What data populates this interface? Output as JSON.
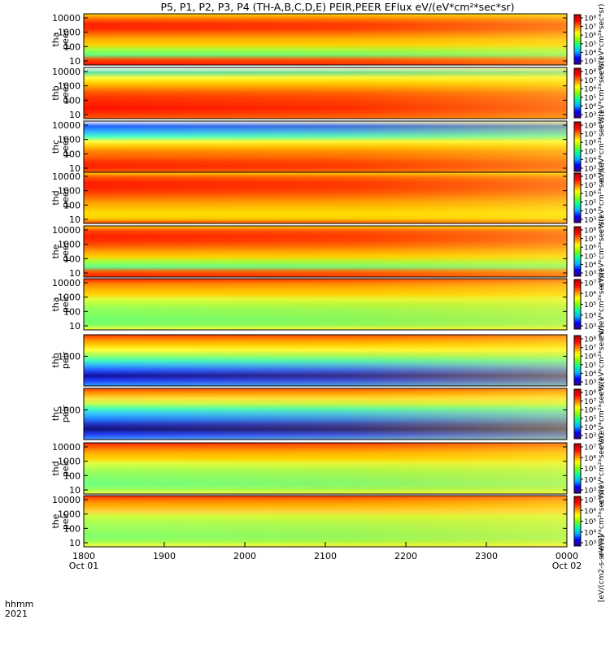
{
  "chart_data": {
    "type": "heatmap",
    "title": "P5, P1, P2, P3, P4 (TH-A,B,C,D,E) PEIR,PEER EFlux eV/(eV*cm²*sec*sr)",
    "xaxis": {
      "label_line1": "hhmm",
      "label_line2": "2021",
      "range": [
        "1800",
        "0000"
      ],
      "ticks": [
        {
          "label": "1800",
          "sub": "Oct 01"
        },
        {
          "label": "1900",
          "sub": ""
        },
        {
          "label": "2000",
          "sub": ""
        },
        {
          "label": "2100",
          "sub": ""
        },
        {
          "label": "2200",
          "sub": ""
        },
        {
          "label": "2300",
          "sub": ""
        },
        {
          "label": "0000",
          "sub": "Oct 02"
        }
      ]
    },
    "colorbar_label": "[eV/(cm2-s-sr-eV)]",
    "colorbar_scheme": [
      "#3a0086",
      "#0000ff",
      "#00b4ff",
      "#00ffa0",
      "#7fff00",
      "#ffff00",
      "#ff8000",
      "#ff0000",
      "#b00000"
    ],
    "panels": [
      {
        "probe": "tha",
        "species": "peer",
        "yticks": [
          "10000",
          "1000",
          "100",
          "10"
        ],
        "cbar_ticks": [
          "10⁸",
          "10⁷",
          "10⁶",
          "10⁵",
          "10⁴",
          "10³"
        ],
        "cbar_label": "eV/(eV*cm²*sec*sr)"
      },
      {
        "probe": "thb",
        "species": "peer",
        "yticks": [
          "10000",
          "1000",
          "100",
          "10"
        ],
        "cbar_ticks": [
          "10⁸",
          "10⁷",
          "10⁶",
          "10⁵",
          "10⁴",
          "10³"
        ],
        "cbar_label": "eV/(eV*cm²*sec*sr)"
      },
      {
        "probe": "thc",
        "species": "peer",
        "yticks": [
          "10000",
          "1000",
          "100",
          "10"
        ],
        "cbar_ticks": [
          "10⁸",
          "10⁷",
          "10⁶",
          "10⁵",
          "10⁴",
          "10³"
        ],
        "cbar_label": "eV/(eV*cm²*sec*sr)"
      },
      {
        "probe": "thd",
        "species": "peer",
        "yticks": [
          "10000",
          "1000",
          "100",
          "10"
        ],
        "cbar_ticks": [
          "10⁸",
          "10⁷",
          "10⁶",
          "10⁵",
          "10⁴",
          "10³"
        ],
        "cbar_label": "eV/(eV*cm²*sec*sr)"
      },
      {
        "probe": "the",
        "species": "peer",
        "yticks": [
          "10000",
          "1000",
          "100",
          "10"
        ],
        "cbar_ticks": [
          "10⁸",
          "10⁷",
          "10⁶",
          "10⁵",
          "10⁴",
          "10³"
        ],
        "cbar_label": "eV/(eV*cm²*sec*sr)"
      },
      {
        "probe": "tha",
        "species": "peir",
        "yticks": [
          "10000",
          "1000",
          "100",
          "10"
        ],
        "cbar_ticks": [
          "10⁷",
          "10⁶",
          "10⁵",
          "10⁴",
          "10³"
        ],
        "cbar_label": "eV/(eV*cm²*sec*sr)"
      },
      {
        "probe": "thb",
        "species": "peir",
        "yticks": [
          "1000"
        ],
        "cbar_ticks": [
          "10⁸",
          "10⁷",
          "10⁶",
          "10⁵",
          "10⁴",
          "10³"
        ],
        "cbar_label": "eV/(eV*cm²*sec*sr)"
      },
      {
        "probe": "thc",
        "species": "peir",
        "yticks": [
          "1000"
        ],
        "cbar_ticks": [
          "10⁸",
          "10⁷",
          "10⁶",
          "10⁵",
          "10⁴",
          "10³"
        ],
        "cbar_label": "eV/(eV*cm²*sec*sr)"
      },
      {
        "probe": "thd",
        "species": "peir",
        "yticks": [
          "10000",
          "1000",
          "100",
          "10"
        ],
        "cbar_ticks": [
          "10⁷",
          "10⁶",
          "10⁵",
          "10⁴",
          "10³"
        ],
        "cbar_label": "eV/(eV*cm²*sec*sr)"
      },
      {
        "probe": "the",
        "species": "peir",
        "yticks": [
          "10000",
          "1000",
          "100",
          "10"
        ],
        "cbar_ticks": [
          "10⁷",
          "10⁶",
          "10⁵",
          "10⁴",
          "10³"
        ],
        "cbar_label": "eV/(eV*cm²*sec*sr)"
      }
    ]
  }
}
